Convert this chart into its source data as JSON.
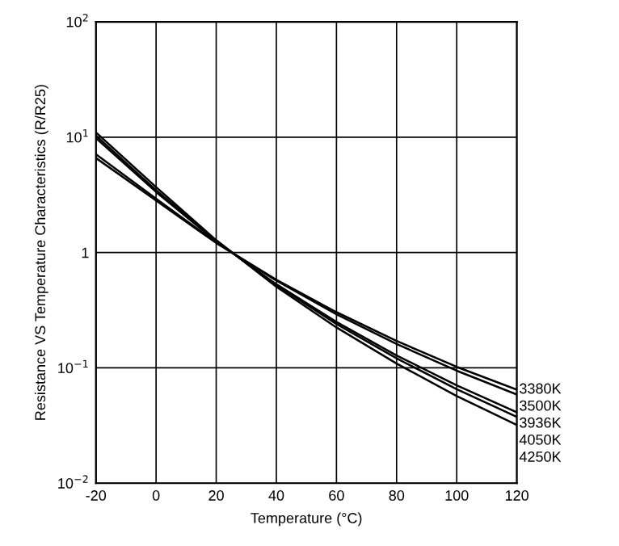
{
  "chart_data": {
    "type": "line",
    "xlabel": "Temperature (°C)",
    "ylabel": "Resistance VS Temperature Characteristics (R/R25)",
    "x": [
      -20,
      0,
      20,
      40,
      60,
      80,
      100,
      120
    ],
    "series": [
      {
        "name": "3380K",
        "color": "#000000",
        "values": [
          6.6,
          2.82,
          1.21,
          0.581,
          0.304,
          0.171,
          0.102,
          0.0646
        ]
      },
      {
        "name": "3500K",
        "color": "#000000",
        "values": [
          7.1,
          2.93,
          1.22,
          0.57,
          0.291,
          0.161,
          0.0945,
          0.0587
        ]
      },
      {
        "name": "3936K",
        "color": "#000000",
        "values": [
          9.8,
          3.35,
          1.25,
          0.531,
          0.25,
          0.128,
          0.0704,
          0.0412
        ]
      },
      {
        "name": "4050K",
        "color": "#000000",
        "values": [
          10.3,
          3.47,
          1.26,
          0.522,
          0.24,
          0.121,
          0.0652,
          0.0376
        ]
      },
      {
        "name": "4250K",
        "color": "#000000",
        "values": [
          11.0,
          3.69,
          1.28,
          0.505,
          0.224,
          0.109,
          0.057,
          0.032
        ]
      }
    ],
    "log": "y",
    "xlim": [
      -20,
      120
    ],
    "ylim": [
      0.01,
      100
    ],
    "xticks": [
      -20,
      0,
      20,
      40,
      60,
      80,
      100,
      120
    ],
    "yticks": [
      {
        "value": 0.01,
        "label": "10$^{−2}$"
      },
      {
        "value": 0.1,
        "label": "10$^{−1}$"
      },
      1,
      {
        "value": 10,
        "label": "10$^{1}$"
      },
      {
        "value": 100,
        "label": "10$^{2}$"
      }
    ],
    "grid": true,
    "legend": false,
    "marker": "none",
    "line_style": "solid"
  }
}
